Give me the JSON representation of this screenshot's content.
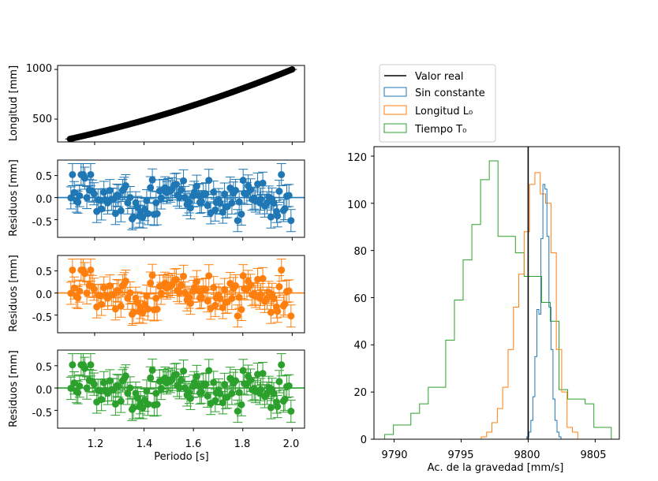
{
  "chart_data": [
    {
      "type": "scatter",
      "panel": "longitud",
      "xlim": [
        1.05,
        2.05
      ],
      "ylim": [
        270,
        1040
      ],
      "ylabel": "Longitud [mm]",
      "yticks": [
        "500",
        "1000"
      ],
      "xticks": [
        "1.2",
        "1.4",
        "1.6",
        "1.8",
        "2.0"
      ],
      "x_range": [
        1.1,
        2.0
      ],
      "length_range_mm": [
        300,
        1000
      ],
      "n_points": 150,
      "color": "#000000"
    },
    {
      "type": "scatter",
      "panel": "residuos-sin-constante",
      "xlim": [
        1.05,
        2.05
      ],
      "ylim": [
        -0.9,
        0.85
      ],
      "ylabel": "Residuos [mm]",
      "yticks": [
        "0.5",
        "0.0",
        "-0.5"
      ],
      "reference_line": 0,
      "errorbar": 0.25,
      "x_range": [
        1.1,
        2.0
      ],
      "n_points": 120,
      "residual_spread": 0.5,
      "color": "#1f77b4"
    },
    {
      "type": "scatter",
      "panel": "residuos-longitud",
      "xlim": [
        1.05,
        2.05
      ],
      "ylim": [
        -0.9,
        0.85
      ],
      "ylabel": "Residuos [mm]",
      "yticks": [
        "0.5",
        "0.0",
        "-0.5"
      ],
      "reference_line": 0,
      "errorbar": 0.25,
      "x_range": [
        1.1,
        2.0
      ],
      "n_points": 120,
      "residual_spread": 0.5,
      "color": "#ff7f0e"
    },
    {
      "type": "scatter",
      "panel": "residuos-tiempo",
      "xlim": [
        1.05,
        2.05
      ],
      "ylim": [
        -0.9,
        0.85
      ],
      "ylabel": "Residuos [mm]",
      "yticks": [
        "0.5",
        "0.0",
        "-0.5"
      ],
      "reference_line": 0,
      "errorbar": 0.25,
      "x_range": [
        1.1,
        2.0
      ],
      "n_points": 120,
      "residual_spread": 0.5,
      "color": "#2ca02c",
      "xlabel": "Periodo [s]",
      "xticks": [
        "1.2",
        "1.4",
        "1.6",
        "1.8",
        "2.0"
      ]
    },
    {
      "type": "histogram",
      "panel": "gravedad",
      "xlim": [
        9788.5,
        9806.8
      ],
      "ylim": [
        0,
        124
      ],
      "xlabel": "Ac. de la gravedad [mm/s]",
      "xticks": [
        "9790",
        "9795",
        "9800",
        "9805"
      ],
      "yticks": [
        "0",
        "20",
        "40",
        "60",
        "80",
        "100",
        "120"
      ],
      "real_value": 9800,
      "legend": {
        "position": "above-right",
        "entries": [
          {
            "label": "Valor real",
            "color": "#000000",
            "kind": "line"
          },
          {
            "label": "Sin constante",
            "color": "#1f77b4",
            "kind": "patch"
          },
          {
            "label": "Longitud L₀",
            "color": "#ff7f0e",
            "kind": "patch"
          },
          {
            "label": "Tiempo T₀",
            "color": "#2ca02c",
            "kind": "patch"
          }
        ]
      },
      "series": [
        {
          "name": "Sin constante",
          "color": "#1f77b4",
          "edges": [
            9799.9,
            9800.05,
            9800.2,
            9800.35,
            9800.5,
            9800.65,
            9800.8,
            9800.95,
            9801.1,
            9801.25,
            9801.4,
            9801.55,
            9801.7,
            9801.85,
            9802.0,
            9802.15,
            9802.3,
            9802.45
          ],
          "counts": [
            1,
            3,
            8,
            18,
            35,
            55,
            53,
            85,
            108,
            106,
            86,
            56,
            38,
            17,
            8,
            3,
            1
          ]
        },
        {
          "name": "Longitud L₀",
          "color": "#ff7f0e",
          "edges": [
            9796.5,
            9796.9,
            9797.3,
            9797.7,
            9798.1,
            9798.5,
            9798.9,
            9799.3,
            9799.7,
            9800.1,
            9800.5,
            9800.9,
            9801.3,
            9801.7,
            9802.1,
            9802.5,
            9802.9,
            9803.3,
            9803.7
          ],
          "counts": [
            1,
            3,
            7,
            13,
            22,
            38,
            56,
            70,
            88,
            108,
            113,
            104,
            100,
            79,
            38,
            20,
            5,
            3
          ]
        },
        {
          "name": "Tiempo T₀",
          "color": "#2ca02c",
          "edges": [
            9789.3,
            9789.95,
            9790.6,
            9791.25,
            9791.9,
            9792.55,
            9793.2,
            9793.85,
            9794.5,
            9795.15,
            9795.8,
            9796.45,
            9797.1,
            9797.75,
            9798.4,
            9799.05,
            9799.7,
            9800.35,
            9801.0,
            9801.65,
            9802.3,
            9802.95,
            9803.6,
            9804.25,
            9804.9,
            9805.55,
            9806.2
          ],
          "counts": [
            2,
            6,
            6,
            11,
            15,
            22,
            22,
            42,
            59,
            76,
            91,
            110,
            118,
            86,
            86,
            79,
            69,
            69,
            58,
            50,
            21,
            17,
            17,
            15,
            5,
            5
          ]
        }
      ]
    }
  ]
}
